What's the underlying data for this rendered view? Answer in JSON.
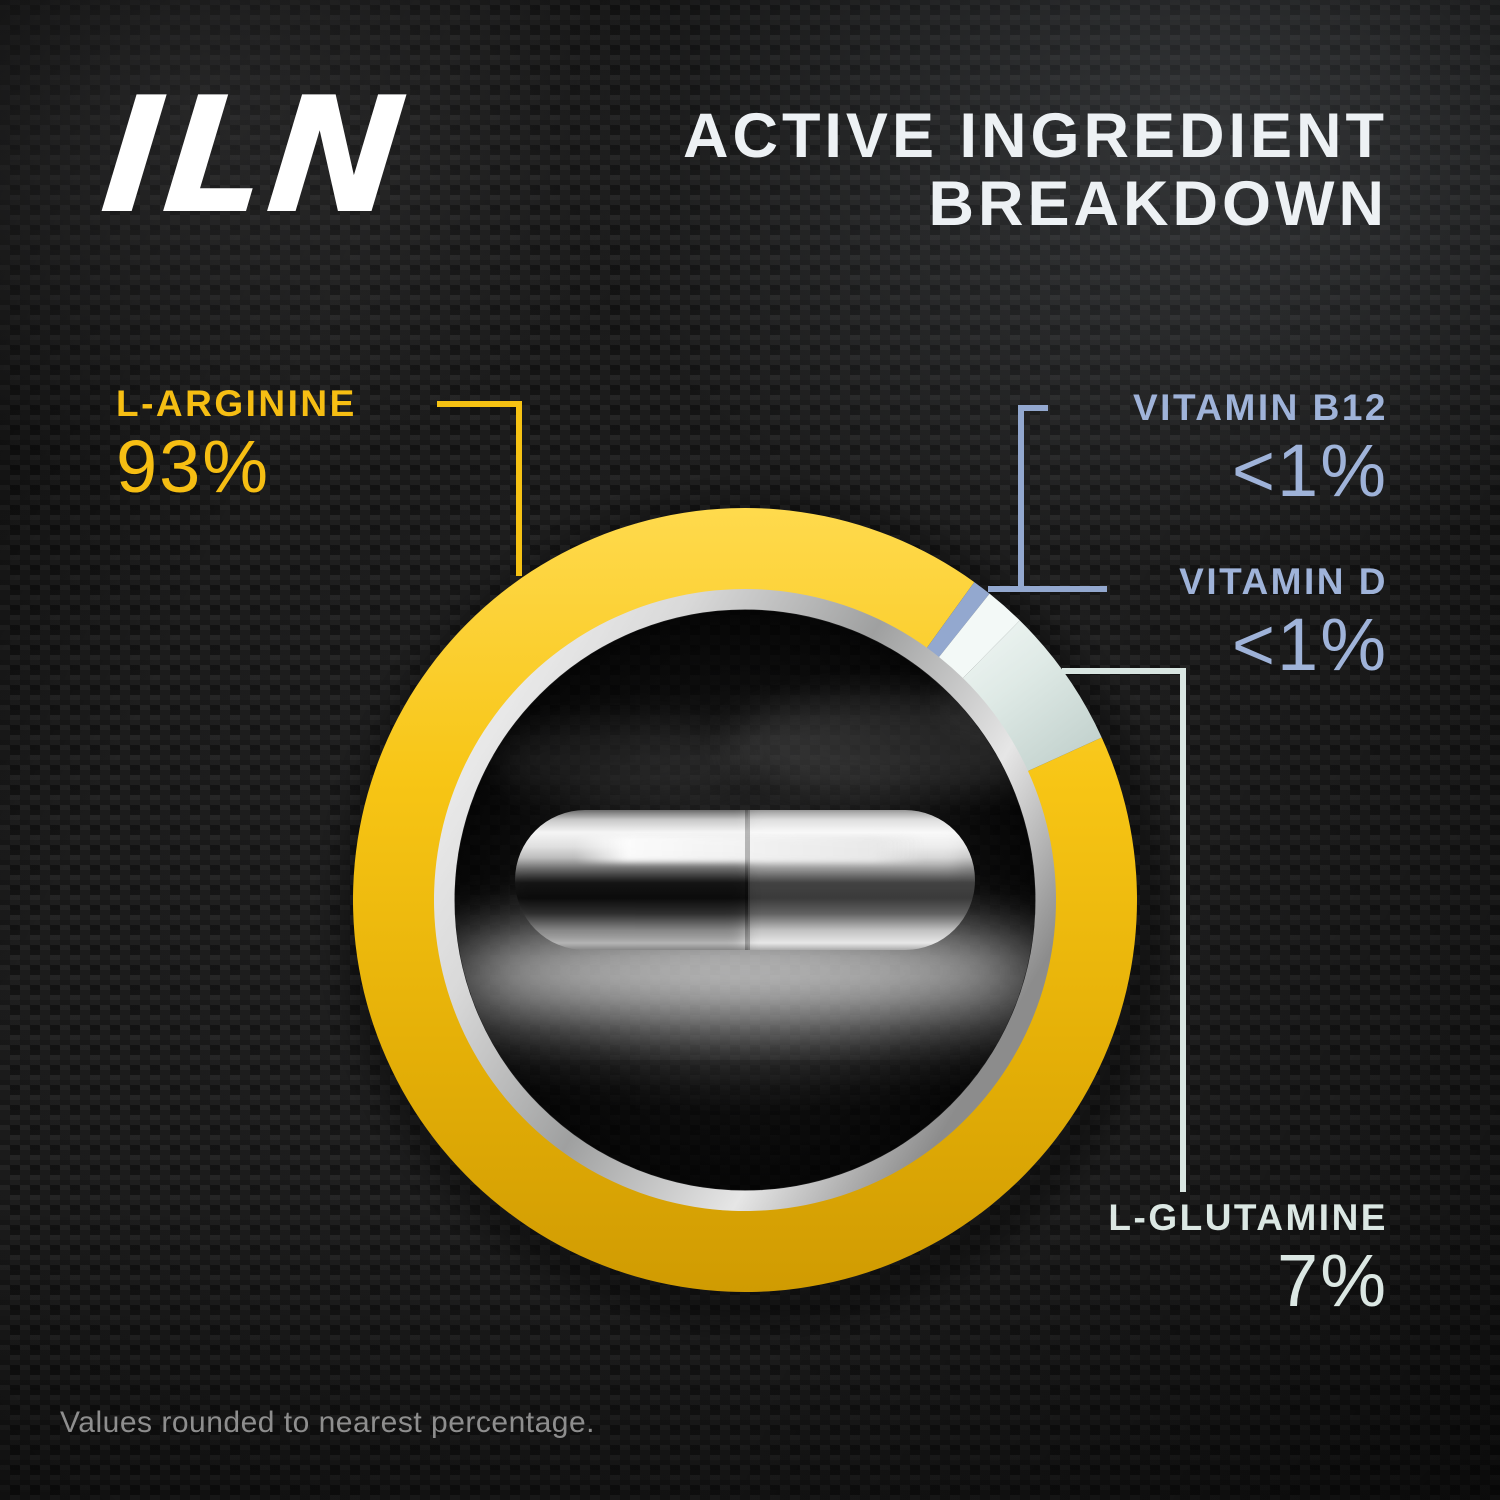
{
  "brand": {
    "logo_text": "ILN"
  },
  "header": {
    "title_line1": "ACTIVE INGREDIENT",
    "title_line2": "BREAKDOWN"
  },
  "footnote": "Values rounded to nearest percentage.",
  "colors": {
    "gold_text": "#F6BE13",
    "blue_text": "#9FB3D9",
    "mint_text": "#DBE7E3",
    "title_text": "#EDF1F4",
    "logo_text": "#FFFFFF",
    "footnote_text": "#8E8E8E",
    "ring_gold_top": "#FFDA4D",
    "ring_gold_bottom": "#D09B02",
    "inner_ring_silver": "#CFCFCF"
  },
  "chart_data": {
    "type": "pie",
    "variant": "donut",
    "title": "Active Ingredient Breakdown",
    "unit": "%",
    "legend_position": "callouts",
    "note": "Values rounded to nearest percentage.",
    "slices": [
      {
        "label": "L-ARGININE",
        "value": 93,
        "value_label": "93%",
        "color": "#F2BF0E",
        "arc_start": 65.5,
        "arc_end": 395.8
      },
      {
        "label": "VITAMIN B12",
        "value": 1,
        "value_label": "<1%",
        "color": "#93A8CF",
        "arc_start": 35.8,
        "arc_end": 38.6
      },
      {
        "label": "VITAMIN D",
        "value": 1,
        "value_label": "<1%",
        "color": "#F3F9F7",
        "arc_start": 38.6,
        "arc_end": 44.5
      },
      {
        "label": "L-GLUTAMINE",
        "value": 7,
        "value_label": "7%",
        "color": "#D7E4E0",
        "arc_start": 44.5,
        "arc_end": 65.5
      }
    ]
  }
}
